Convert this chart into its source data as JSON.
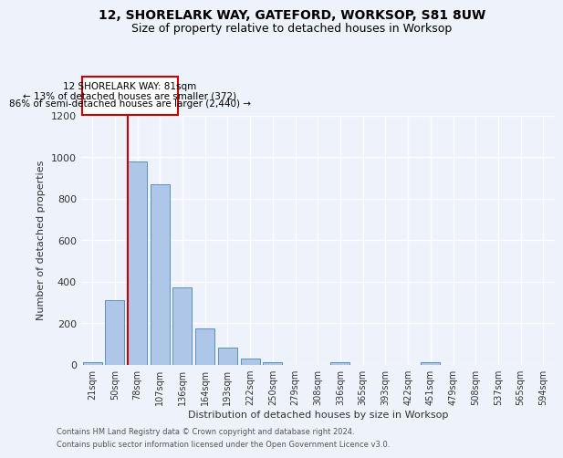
{
  "title_line1": "12, SHORELARK WAY, GATEFORD, WORKSOP, S81 8UW",
  "title_line2": "Size of property relative to detached houses in Worksop",
  "xlabel": "Distribution of detached houses by size in Worksop",
  "ylabel": "Number of detached properties",
  "categories": [
    "21sqm",
    "50sqm",
    "78sqm",
    "107sqm",
    "136sqm",
    "164sqm",
    "193sqm",
    "222sqm",
    "250sqm",
    "279sqm",
    "308sqm",
    "336sqm",
    "365sqm",
    "393sqm",
    "422sqm",
    "451sqm",
    "479sqm",
    "508sqm",
    "537sqm",
    "565sqm",
    "594sqm"
  ],
  "values": [
    10,
    310,
    980,
    870,
    370,
    175,
    80,
    28,
    10,
    0,
    0,
    10,
    0,
    0,
    0,
    12,
    0,
    0,
    0,
    0,
    0
  ],
  "bar_color": "#aec6e8",
  "bar_edge_color": "#5a8fc0",
  "property_line_label": "12 SHORELARK WAY: 81sqm",
  "annotation_line1": "← 13% of detached houses are smaller (372)",
  "annotation_line2": "86% of semi-detached houses are larger (2,440) →",
  "box_color": "#cc0000",
  "ylim": [
    0,
    1200
  ],
  "yticks": [
    0,
    200,
    400,
    600,
    800,
    1000,
    1200
  ],
  "footer_line1": "Contains HM Land Registry data © Crown copyright and database right 2024.",
  "footer_line2": "Contains public sector information licensed under the Open Government Licence v3.0.",
  "background_color": "#eef2fa",
  "grid_color": "#ffffff"
}
